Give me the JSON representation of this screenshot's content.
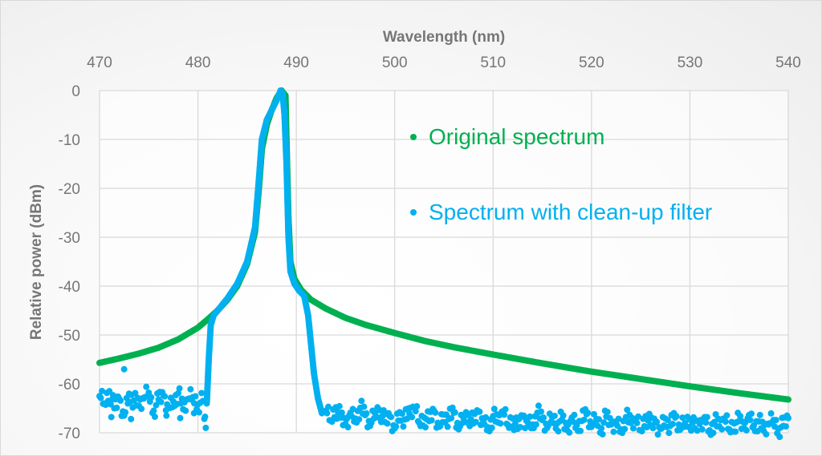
{
  "chart_data": {
    "type": "scatter",
    "title": "",
    "xlabel": "Wavelength (nm)",
    "ylabel": "Relative power (dBm)",
    "xlim": [
      470,
      540
    ],
    "ylim": [
      -70,
      0
    ],
    "x_axis_position": "top",
    "xticks": [
      "470",
      "480",
      "490",
      "500",
      "510",
      "520",
      "530",
      "540"
    ],
    "yticks": [
      "0",
      "-10",
      "-20",
      "-30",
      "-40",
      "-50",
      "-60",
      "-70"
    ],
    "grid": true,
    "legend_position": "right",
    "series": [
      {
        "name": "Original spectrum",
        "color": "#00b050",
        "points": [
          [
            470,
            -55.7
          ],
          [
            472,
            -54.8
          ],
          [
            474,
            -53.8
          ],
          [
            476,
            -52.6
          ],
          [
            478,
            -50.9
          ],
          [
            480,
            -48.5
          ],
          [
            481,
            -46.8
          ],
          [
            482,
            -45
          ],
          [
            483,
            -42.8
          ],
          [
            484,
            -40
          ],
          [
            485,
            -35.5
          ],
          [
            485.8,
            -29
          ],
          [
            486.2,
            -20
          ],
          [
            486.5,
            -12
          ],
          [
            487,
            -7
          ],
          [
            487.5,
            -4
          ],
          [
            488,
            -1.5
          ],
          [
            488.5,
            0
          ],
          [
            488.9,
            -1
          ],
          [
            489,
            -10
          ],
          [
            489.2,
            -26
          ],
          [
            489.4,
            -35
          ],
          [
            489.8,
            -38.5
          ],
          [
            490.5,
            -40.8
          ],
          [
            491.5,
            -42.8
          ],
          [
            493,
            -44.6
          ],
          [
            495,
            -46.5
          ],
          [
            497,
            -47.9
          ],
          [
            500,
            -49.6
          ],
          [
            503,
            -51.2
          ],
          [
            506,
            -52.5
          ],
          [
            510,
            -54
          ],
          [
            515,
            -55.8
          ],
          [
            520,
            -57.5
          ],
          [
            525,
            -59
          ],
          [
            530,
            -60.5
          ],
          [
            535,
            -61.9
          ],
          [
            540,
            -63.2
          ]
        ]
      },
      {
        "name": "Spectrum with clean-up filter",
        "color": "#00b0f0",
        "points": [
          [
            480.9,
            -64
          ],
          [
            481.1,
            -55
          ],
          [
            481.3,
            -48
          ],
          [
            481.6,
            -46
          ],
          [
            482,
            -45
          ],
          [
            483,
            -42.5
          ],
          [
            484,
            -39.5
          ],
          [
            485,
            -35
          ],
          [
            485.8,
            -28
          ],
          [
            486.2,
            -18
          ],
          [
            486.5,
            -10
          ],
          [
            487,
            -6
          ],
          [
            487.5,
            -4
          ],
          [
            488,
            -2
          ],
          [
            488.4,
            0
          ],
          [
            488.6,
            -0.5
          ],
          [
            488.8,
            -5
          ],
          [
            489,
            -15
          ],
          [
            489.2,
            -30
          ],
          [
            489.4,
            -37
          ],
          [
            489.8,
            -39.5
          ],
          [
            490.3,
            -41
          ],
          [
            490.8,
            -42
          ],
          [
            491.2,
            -46
          ],
          [
            491.5,
            -52
          ],
          [
            491.8,
            -58
          ],
          [
            492.2,
            -63
          ],
          [
            492.6,
            -66
          ]
        ],
        "noise_left": {
          "x": [
            470,
            470.5,
            471,
            471.5,
            472,
            472.5,
            473,
            473.5,
            474,
            474.5,
            475,
            475.5,
            476,
            476.5,
            477,
            477.5,
            478,
            478.5,
            479,
            479.5,
            480,
            480.5,
            480.8,
            472.5,
            471.2,
            473.2,
            476.8,
            478.2,
            479.6
          ],
          "y": [
            -62.5,
            -64,
            -61.5,
            -65,
            -63,
            -66.5,
            -62,
            -63.4,
            -64.5,
            -63,
            -61.8,
            -65.5,
            -63.2,
            -62.4,
            -64.8,
            -63.6,
            -61.9,
            -65.2,
            -63.1,
            -62.7,
            -64.2,
            -63.5,
            -69,
            -57,
            -66.8,
            -67.2,
            -66.5,
            -67,
            -66
          ]
        },
        "noise_right": {
          "x": [
            493,
            493.5,
            494,
            494.5,
            495,
            495.5,
            496,
            496.5,
            497,
            497.5,
            498,
            498.5,
            499,
            499.5,
            500,
            500.5,
            501,
            501.5,
            502,
            502.5,
            503,
            503.5,
            504,
            504.5,
            505,
            505.5,
            506,
            506.5,
            507,
            507.5,
            508,
            508.5,
            509,
            509.5,
            510,
            510.5,
            511,
            511.5,
            512,
            512.5,
            513,
            513.5,
            514,
            514.5,
            515,
            515.5,
            516,
            516.5,
            517,
            517.5,
            518,
            518.5,
            519,
            519.5,
            520,
            520.5,
            521,
            521.5,
            522,
            522.5,
            523,
            523.5,
            524,
            524.5,
            525,
            525.5,
            526,
            526.5,
            527,
            527.5,
            528,
            528.5,
            529,
            529.5,
            530,
            530.5,
            531,
            531.5,
            532,
            532.5,
            533,
            533.5,
            534,
            534.5,
            535,
            535.5,
            536,
            536.5,
            537,
            537.5,
            538,
            538.5,
            539,
            539.5,
            540
          ],
          "y": [
            -65.5,
            -67.5,
            -64.8,
            -66.9,
            -68.2,
            -65.9,
            -67.1,
            -64.9,
            -66.4,
            -68.6,
            -66,
            -65.4,
            -67.8,
            -66.6,
            -69.1,
            -65.8,
            -67.3,
            -66.1,
            -64.8,
            -68,
            -66.9,
            -67.6,
            -65.5,
            -68.8,
            -66.3,
            -67.2,
            -65.9,
            -69.3,
            -67,
            -66.4,
            -68.1,
            -65.7,
            -67.5,
            -68.9,
            -66.6,
            -67.9,
            -65.6,
            -68.4,
            -67.1,
            -69.2,
            -66.7,
            -67.8,
            -68.3,
            -65.9,
            -67.4,
            -69,
            -66.8,
            -68.1,
            -67.3,
            -69.4,
            -66.9,
            -68.5,
            -67.6,
            -66.2,
            -68.8,
            -67.2,
            -69.1,
            -66.7,
            -68.3,
            -67.7,
            -69.3,
            -66.8,
            -68,
            -67.5,
            -69.5,
            -66.6,
            -68.4,
            -67.9,
            -69.2,
            -67.1,
            -68.6,
            -66.9,
            -69.4,
            -68,
            -67.3,
            -69.1,
            -68.2,
            -66.8,
            -69.5,
            -67.8,
            -68.7,
            -67.2,
            -69.3,
            -68.1,
            -67.6,
            -69,
            -66.4,
            -68.5,
            -67.7,
            -69.6,
            -68.3,
            -67.4,
            -69.2,
            -68.6,
            -67
          ]
        }
      }
    ]
  }
}
